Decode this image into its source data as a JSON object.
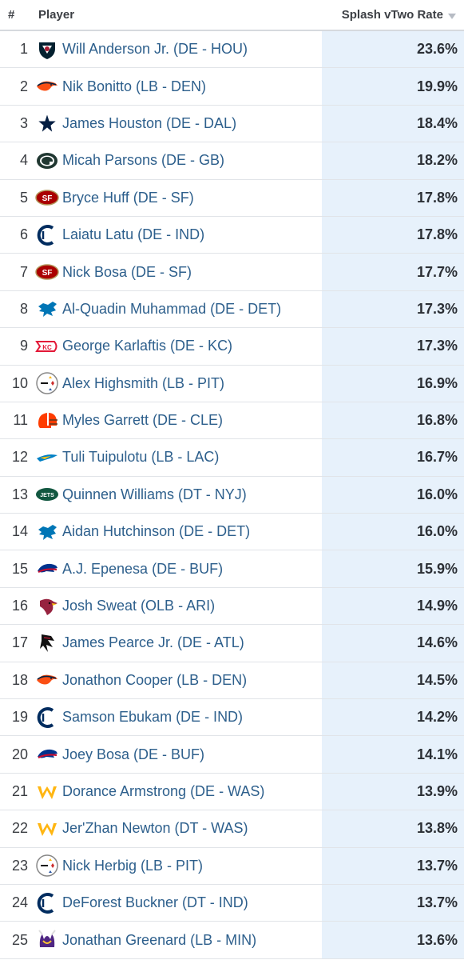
{
  "header": {
    "rank": "#",
    "player": "Player",
    "rate": "Splash vTwo Rate"
  },
  "rows": [
    {
      "rank": "1",
      "name": "Will Anderson Jr. (DE - HOU)",
      "rate": "23.6%",
      "team_icon": "texans-logo-icon"
    },
    {
      "rank": "2",
      "name": "Nik Bonitto (LB - DEN)",
      "rate": "19.9%",
      "team_icon": "broncos-logo-icon"
    },
    {
      "rank": "3",
      "name": "James Houston (DE - DAL)",
      "rate": "18.4%",
      "team_icon": "cowboys-logo-icon"
    },
    {
      "rank": "4",
      "name": "Micah Parsons (DE - GB)",
      "rate": "18.2%",
      "team_icon": "packers-logo-icon"
    },
    {
      "rank": "5",
      "name": "Bryce Huff (DE - SF)",
      "rate": "17.8%",
      "team_icon": "49ers-logo-icon"
    },
    {
      "rank": "6",
      "name": "Laiatu Latu (DE - IND)",
      "rate": "17.8%",
      "team_icon": "colts-logo-icon"
    },
    {
      "rank": "7",
      "name": "Nick Bosa (DE - SF)",
      "rate": "17.7%",
      "team_icon": "49ers-logo-icon"
    },
    {
      "rank": "8",
      "name": "Al-Quadin Muhammad (DE - DET)",
      "rate": "17.3%",
      "team_icon": "lions-logo-icon"
    },
    {
      "rank": "9",
      "name": "George Karlaftis (DE - KC)",
      "rate": "17.3%",
      "team_icon": "chiefs-logo-icon"
    },
    {
      "rank": "10",
      "name": "Alex Highsmith (LB - PIT)",
      "rate": "16.9%",
      "team_icon": "steelers-logo-icon"
    },
    {
      "rank": "11",
      "name": "Myles Garrett (DE - CLE)",
      "rate": "16.8%",
      "team_icon": "browns-logo-icon"
    },
    {
      "rank": "12",
      "name": "Tuli Tuipulotu (LB - LAC)",
      "rate": "16.7%",
      "team_icon": "chargers-logo-icon"
    },
    {
      "rank": "13",
      "name": "Quinnen Williams (DT - NYJ)",
      "rate": "16.0%",
      "team_icon": "jets-logo-icon"
    },
    {
      "rank": "14",
      "name": "Aidan Hutchinson (DE - DET)",
      "rate": "16.0%",
      "team_icon": "lions-logo-icon"
    },
    {
      "rank": "15",
      "name": "A.J. Epenesa (DE - BUF)",
      "rate": "15.9%",
      "team_icon": "bills-logo-icon"
    },
    {
      "rank": "16",
      "name": "Josh Sweat (OLB - ARI)",
      "rate": "14.9%",
      "team_icon": "cardinals-logo-icon"
    },
    {
      "rank": "17",
      "name": "James Pearce Jr. (DE - ATL)",
      "rate": "14.6%",
      "team_icon": "falcons-logo-icon"
    },
    {
      "rank": "18",
      "name": "Jonathon Cooper (LB - DEN)",
      "rate": "14.5%",
      "team_icon": "broncos-logo-icon"
    },
    {
      "rank": "19",
      "name": "Samson Ebukam (DE - IND)",
      "rate": "14.2%",
      "team_icon": "colts-logo-icon"
    },
    {
      "rank": "20",
      "name": "Joey Bosa (DE - BUF)",
      "rate": "14.1%",
      "team_icon": "bills-logo-icon"
    },
    {
      "rank": "21",
      "name": "Dorance Armstrong (DE - WAS)",
      "rate": "13.9%",
      "team_icon": "commanders-logo-icon"
    },
    {
      "rank": "22",
      "name": "Jer'Zhan Newton (DT - WAS)",
      "rate": "13.8%",
      "team_icon": "commanders-logo-icon"
    },
    {
      "rank": "23",
      "name": "Nick Herbig (LB - PIT)",
      "rate": "13.7%",
      "team_icon": "steelers-logo-icon"
    },
    {
      "rank": "24",
      "name": "DeForest Buckner (DT - IND)",
      "rate": "13.7%",
      "team_icon": "colts-logo-icon"
    },
    {
      "rank": "25",
      "name": "Jonathan Greenard (LB - MIN)",
      "rate": "13.6%",
      "team_icon": "vikings-logo-icon"
    }
  ],
  "colors": {
    "link": "#2d5f8c",
    "highlight": "#e7f1fb",
    "texans_navy": "#03202f",
    "texans_red": "#a71930",
    "broncos_orange": "#fb4f14",
    "broncos_navy": "#002244",
    "cowboys_navy": "#041e42",
    "packers_green": "#203731",
    "packers_gold": "#ffb612",
    "niners_red": "#aa0000",
    "niners_gold": "#b3995d",
    "colts_blue": "#002c5f",
    "lions_blue": "#0076b6",
    "chiefs_red": "#e31837",
    "steelers_gold": "#ffb612",
    "browns_orange": "#ff3c00",
    "chargers_blue": "#0080c6",
    "jets_green": "#125740",
    "bills_blue": "#00338d",
    "bills_red": "#c60c30",
    "cardinals_red": "#97233f",
    "falcons_red": "#a71930",
    "commanders_gold": "#ffb612",
    "vikings_purple": "#4f2683"
  }
}
